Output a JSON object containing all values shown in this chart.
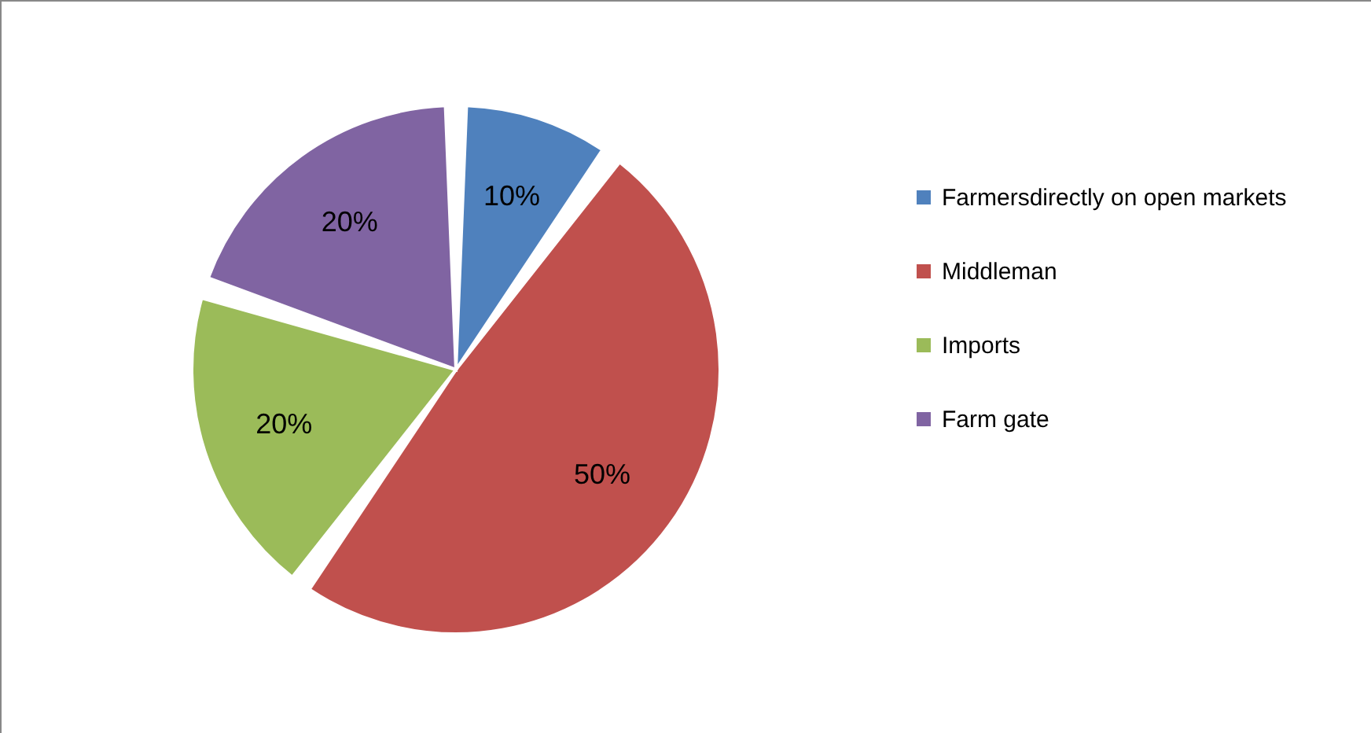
{
  "chart_data": {
    "type": "pie",
    "categories": [
      "Farmersdirectly on open markets",
      "Middleman",
      "Imports",
      "Farm gate"
    ],
    "values": [
      10,
      50,
      20,
      20
    ],
    "colors": [
      "#4f81bd",
      "#c0504d",
      "#9bbb59",
      "#8064a2"
    ],
    "value_labels": [
      "10%",
      "50%",
      "20%",
      "20%"
    ],
    "legend": "right"
  }
}
